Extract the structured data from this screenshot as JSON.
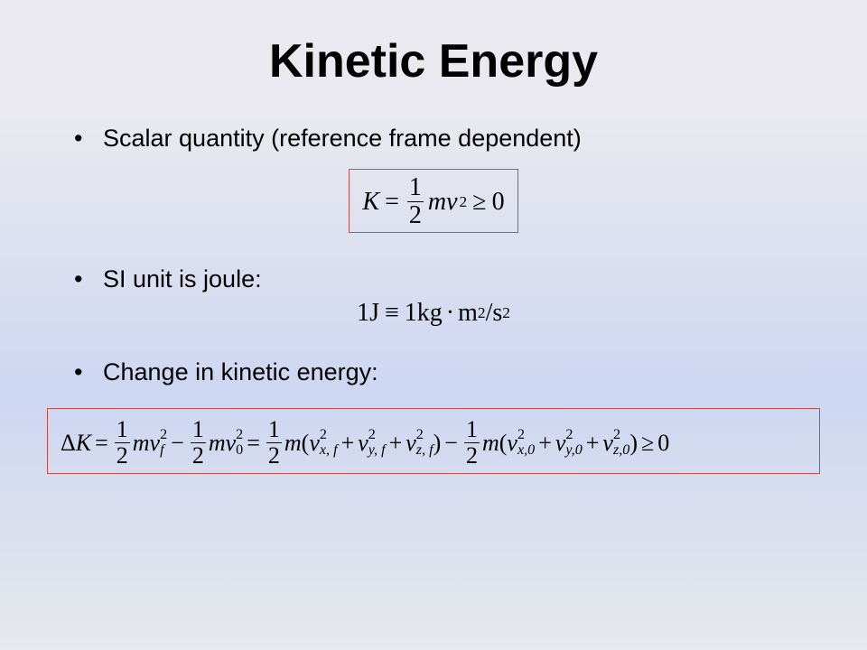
{
  "title": "Kinetic Energy",
  "bullets": {
    "b1": "Scalar quantity (reference frame dependent)",
    "b2": "SI unit is joule:",
    "b3": "Change in kinetic energy:"
  },
  "equations": {
    "ke_def": {
      "lhs": "K",
      "eq": "=",
      "frac_num": "1",
      "frac_den": "2",
      "mv": "mv",
      "sq": "2",
      "geq": "≥",
      "zero": "0"
    },
    "joule_def": {
      "text_left": "1J",
      "equiv": "≡",
      "rhs_1": "1kg",
      "dot": "·",
      "rhs_2": "m",
      "rhs_sup": "2",
      "slash": "/s",
      "rhs_sup2": "2"
    },
    "delta_ke": {
      "DK": "ΔK",
      "eq": "=",
      "half_num": "1",
      "half_den": "2",
      "m": "m",
      "v": "v",
      "minus": "−",
      "lp": "(",
      "rp": ")",
      "plus": "+",
      "geq": "≥",
      "zero": "0",
      "sub_f": "f",
      "sub_0": "0",
      "sub_xf": "x, f",
      "sub_yf": "y, f",
      "sub_zf": "z, f",
      "sub_x0": "x,0",
      "sub_y0": "y,0",
      "sub_z0": "z,0",
      "sup2": "2"
    }
  },
  "style": {
    "title_fontsize": 52,
    "bullet_fontsize": 27,
    "math_fontsize": 28,
    "wide_math_fontsize": 26,
    "border_color": "#c0504d",
    "text_color": "#000000",
    "bg_gradient_top": "#e9e9ef",
    "bg_gradient_mid": "#cdd6f2",
    "font_body": "Arial",
    "font_math": "Times New Roman"
  }
}
